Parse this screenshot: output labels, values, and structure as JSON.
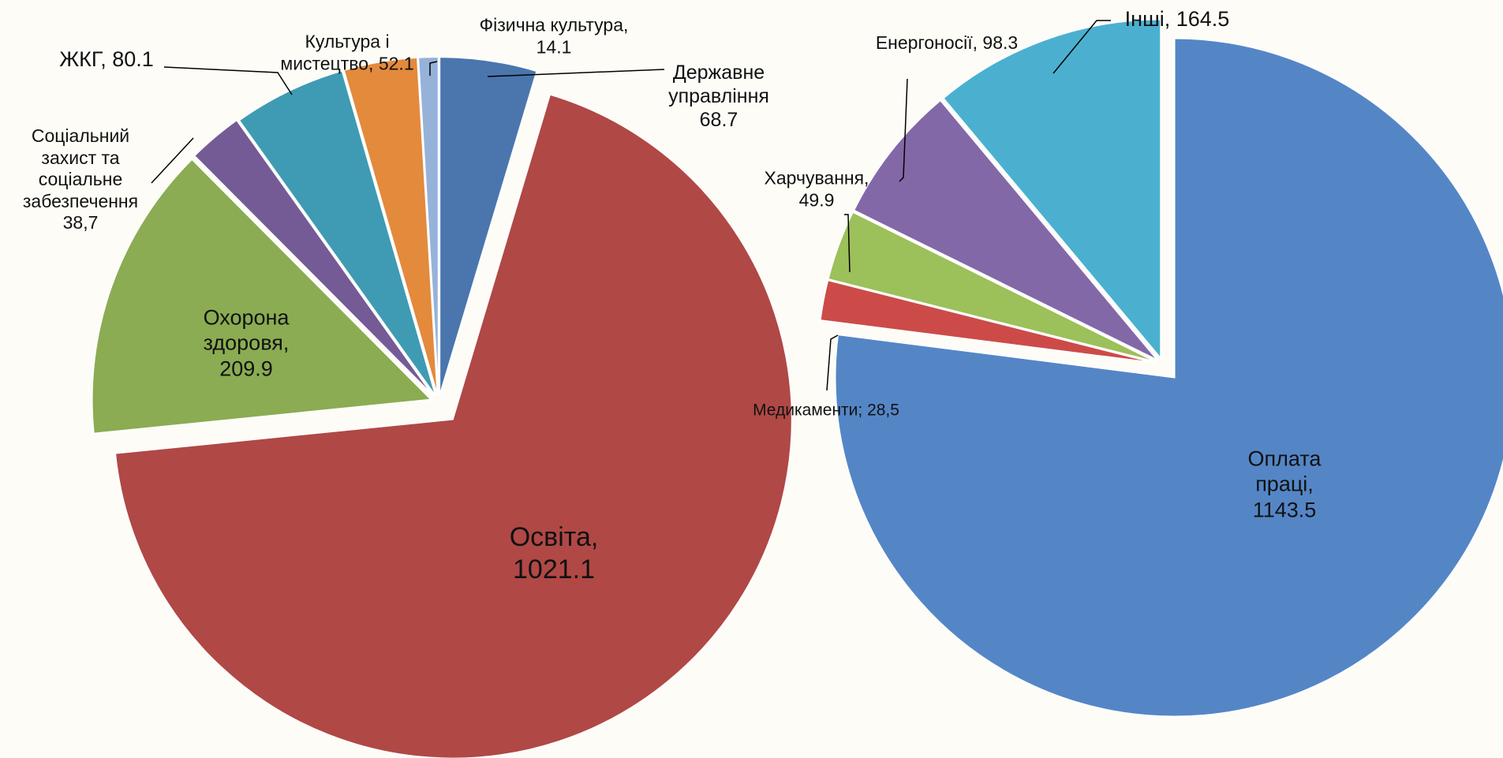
{
  "chart_data": [
    {
      "type": "pie",
      "categories": [
        "Державне управління",
        "Освіта,",
        "Охорона здоровя,",
        "Соціальний захист та соціальне забезпечення",
        "ЖКГ,",
        "Культура і мистецтво,",
        "Фізична культура,"
      ],
      "values": [
        68.7,
        1021.1,
        209.9,
        38.7,
        80.1,
        52.1,
        14.1
      ],
      "value_labels": [
        "68.7",
        "1021.1",
        "209.9",
        "38,7",
        "80.1",
        "52.1",
        "14.1"
      ],
      "colors": [
        "#4a76ad",
        "#b04846",
        "#8bac52",
        "#745b96",
        "#3f9bb3",
        "#e38a3d",
        "#96b2d9"
      ]
    },
    {
      "type": "pie",
      "categories": [
        "Оплата праці,",
        "Медикаменти;",
        "Харчування,",
        "Енергоносії,",
        "Інші,"
      ],
      "values": [
        1143.5,
        28.5,
        49.9,
        98.3,
        164.5
      ],
      "value_labels": [
        "1143.5",
        "28,5",
        "49.9",
        "98.3",
        "164.5"
      ],
      "colors": [
        "#5486c6",
        "#cc4b48",
        "#9cc05a",
        "#8368a8",
        "#4bb0d0"
      ]
    }
  ]
}
